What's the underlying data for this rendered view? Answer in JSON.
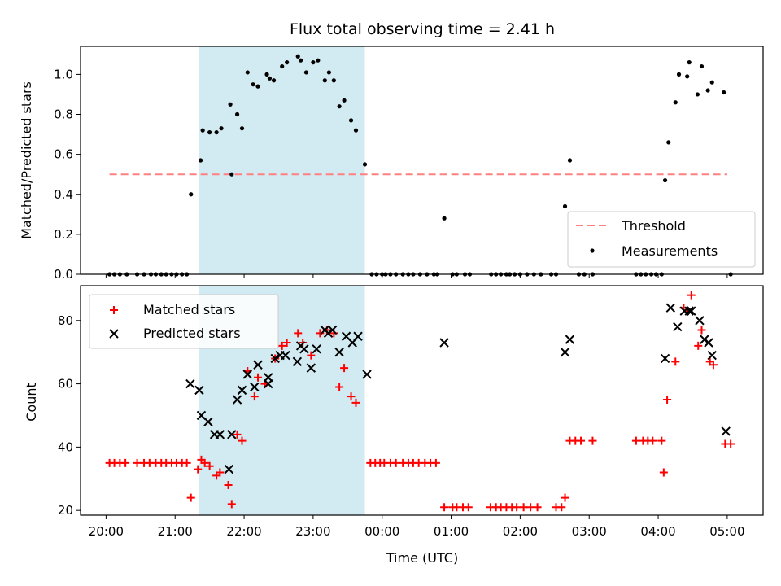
{
  "chart_data": [
    {
      "type": "scatter",
      "title": "Flux total observing time = 2.41 h",
      "ylabel": "Matched/Predicted stars",
      "xlabel": "",
      "x_unit": "hours since 20:00 UTC",
      "xlim": [
        -0.37,
        9.52
      ],
      "ylim": [
        0.0,
        1.14
      ],
      "yticks": [
        0.0,
        0.2,
        0.4,
        0.6,
        0.8,
        1.0
      ],
      "ytick_labels": [
        "0.0",
        "0.2",
        "0.4",
        "0.6",
        "0.8",
        "1.0"
      ],
      "shaded_region": {
        "x0": 1.35,
        "x1": 3.75,
        "color": "#add8e6"
      },
      "threshold": {
        "name": "Threshold",
        "y": 0.5,
        "x0": 0.05,
        "x1": 9.0,
        "color": "#ff8080"
      },
      "legend": {
        "position": "lower right",
        "entries": [
          "Threshold",
          "Measurements"
        ]
      },
      "series": [
        {
          "name": "Measurements",
          "marker": "dot",
          "color": "#000000",
          "points": [
            [
              0.05,
              0
            ],
            [
              0.12,
              0
            ],
            [
              0.2,
              0
            ],
            [
              0.3,
              0
            ],
            [
              0.45,
              0
            ],
            [
              0.55,
              0
            ],
            [
              0.65,
              0
            ],
            [
              0.72,
              0
            ],
            [
              0.8,
              0
            ],
            [
              0.87,
              0
            ],
            [
              0.95,
              0
            ],
            [
              1.02,
              0
            ],
            [
              1.1,
              0
            ],
            [
              1.17,
              0
            ],
            [
              1.23,
              0.4
            ],
            [
              1.37,
              0.57
            ],
            [
              1.4,
              0.72
            ],
            [
              1.5,
              0.71
            ],
            [
              1.6,
              0.71
            ],
            [
              1.67,
              0.73
            ],
            [
              1.8,
              0.85
            ],
            [
              1.82,
              0.5
            ],
            [
              1.9,
              0.8
            ],
            [
              1.97,
              0.73
            ],
            [
              2.05,
              1.01
            ],
            [
              2.13,
              0.95
            ],
            [
              2.2,
              0.94
            ],
            [
              2.33,
              1.0
            ],
            [
              2.37,
              0.98
            ],
            [
              2.43,
              0.97
            ],
            [
              2.55,
              1.04
            ],
            [
              2.62,
              1.06
            ],
            [
              2.78,
              1.09
            ],
            [
              2.82,
              1.07
            ],
            [
              2.9,
              1.01
            ],
            [
              3.0,
              1.06
            ],
            [
              3.07,
              1.07
            ],
            [
              3.17,
              0.97
            ],
            [
              3.23,
              1.01
            ],
            [
              3.3,
              0.97
            ],
            [
              3.38,
              0.84
            ],
            [
              3.45,
              0.87
            ],
            [
              3.55,
              0.77
            ],
            [
              3.62,
              0.72
            ],
            [
              3.75,
              0.55
            ],
            [
              3.85,
              0
            ],
            [
              3.92,
              0
            ],
            [
              4.0,
              0
            ],
            [
              4.05,
              0
            ],
            [
              4.12,
              0
            ],
            [
              4.2,
              0
            ],
            [
              4.3,
              0
            ],
            [
              4.38,
              0
            ],
            [
              4.45,
              0
            ],
            [
              4.55,
              0
            ],
            [
              4.65,
              0
            ],
            [
              4.75,
              0
            ],
            [
              4.8,
              0
            ],
            [
              4.9,
              0.28
            ],
            [
              5.02,
              0
            ],
            [
              5.08,
              0
            ],
            [
              5.2,
              0
            ],
            [
              5.27,
              0
            ],
            [
              5.58,
              0
            ],
            [
              5.65,
              0
            ],
            [
              5.72,
              0
            ],
            [
              5.8,
              0
            ],
            [
              5.85,
              0
            ],
            [
              5.92,
              0
            ],
            [
              6.0,
              0
            ],
            [
              6.1,
              0
            ],
            [
              6.2,
              0
            ],
            [
              6.3,
              0
            ],
            [
              6.45,
              0
            ],
            [
              6.52,
              0
            ],
            [
              6.65,
              0.34
            ],
            [
              6.72,
              0.57
            ],
            [
              6.85,
              0
            ],
            [
              6.93,
              0
            ],
            [
              7.05,
              0
            ],
            [
              7.68,
              0
            ],
            [
              7.75,
              0
            ],
            [
              7.82,
              0
            ],
            [
              7.9,
              0
            ],
            [
              7.97,
              0
            ],
            [
              8.05,
              0
            ],
            [
              8.1,
              0.47
            ],
            [
              8.15,
              0.66
            ],
            [
              8.25,
              0.86
            ],
            [
              8.3,
              1.0
            ],
            [
              8.42,
              0.99
            ],
            [
              8.45,
              1.06
            ],
            [
              8.57,
              0.9
            ],
            [
              8.63,
              1.04
            ],
            [
              8.72,
              0.92
            ],
            [
              8.78,
              0.96
            ],
            [
              8.95,
              0.91
            ],
            [
              9.05,
              0
            ]
          ]
        }
      ]
    },
    {
      "type": "scatter",
      "title": "",
      "ylabel": "Count",
      "xlabel": "Time (UTC)",
      "x_unit": "hours since 20:00 UTC",
      "xlim": [
        -0.37,
        9.52
      ],
      "ylim": [
        18.5,
        91.0
      ],
      "yticks": [
        20,
        40,
        60,
        80
      ],
      "ytick_labels": [
        "20",
        "40",
        "60",
        "80"
      ],
      "xticks": [
        0,
        1,
        2,
        3,
        4,
        5,
        6,
        7,
        8,
        9
      ],
      "xtick_labels": [
        "20:00",
        "21:00",
        "22:00",
        "23:00",
        "00:00",
        "01:00",
        "02:00",
        "03:00",
        "04:00",
        "05:00"
      ],
      "shaded_region": {
        "x0": 1.35,
        "x1": 3.75,
        "color": "#add8e6"
      },
      "legend": {
        "position": "upper left",
        "entries": [
          "Matched stars",
          "Predicted stars"
        ]
      },
      "series": [
        {
          "name": "Matched stars",
          "marker": "plus",
          "color": "#ff0000",
          "points": [
            [
              0.05,
              35
            ],
            [
              0.12,
              35
            ],
            [
              0.2,
              35
            ],
            [
              0.28,
              35
            ],
            [
              0.45,
              35
            ],
            [
              0.55,
              35
            ],
            [
              0.63,
              35
            ],
            [
              0.72,
              35
            ],
            [
              0.8,
              35
            ],
            [
              0.87,
              35
            ],
            [
              0.95,
              35
            ],
            [
              1.02,
              35
            ],
            [
              1.1,
              35
            ],
            [
              1.17,
              35
            ],
            [
              1.23,
              24
            ],
            [
              1.33,
              33
            ],
            [
              1.38,
              36
            ],
            [
              1.43,
              35
            ],
            [
              1.5,
              34
            ],
            [
              1.6,
              31
            ],
            [
              1.65,
              32
            ],
            [
              1.77,
              28
            ],
            [
              1.82,
              22
            ],
            [
              1.9,
              44
            ],
            [
              1.97,
              42
            ],
            [
              2.05,
              64
            ],
            [
              2.15,
              56
            ],
            [
              2.2,
              62
            ],
            [
              2.3,
              60
            ],
            [
              2.45,
              68
            ],
            [
              2.55,
              72
            ],
            [
              2.62,
              73
            ],
            [
              2.78,
              76
            ],
            [
              2.85,
              73
            ],
            [
              2.97,
              69
            ],
            [
              3.1,
              76
            ],
            [
              3.2,
              77
            ],
            [
              3.3,
              76
            ],
            [
              3.38,
              59
            ],
            [
              3.45,
              65
            ],
            [
              3.55,
              56
            ],
            [
              3.62,
              54
            ],
            [
              3.83,
              35
            ],
            [
              3.9,
              35
            ],
            [
              3.97,
              35
            ],
            [
              4.03,
              35
            ],
            [
              4.12,
              35
            ],
            [
              4.2,
              35
            ],
            [
              4.3,
              35
            ],
            [
              4.38,
              35
            ],
            [
              4.45,
              35
            ],
            [
              4.53,
              35
            ],
            [
              4.62,
              35
            ],
            [
              4.7,
              35
            ],
            [
              4.78,
              35
            ],
            [
              4.9,
              21
            ],
            [
              5.02,
              21
            ],
            [
              5.08,
              21
            ],
            [
              5.17,
              21
            ],
            [
              5.25,
              21
            ],
            [
              5.57,
              21
            ],
            [
              5.65,
              21
            ],
            [
              5.72,
              21
            ],
            [
              5.8,
              21
            ],
            [
              5.88,
              21
            ],
            [
              5.95,
              21
            ],
            [
              6.05,
              21
            ],
            [
              6.15,
              21
            ],
            [
              6.25,
              21
            ],
            [
              6.52,
              21
            ],
            [
              6.6,
              21
            ],
            [
              6.65,
              24
            ],
            [
              6.72,
              42
            ],
            [
              6.8,
              42
            ],
            [
              6.88,
              42
            ],
            [
              7.05,
              42
            ],
            [
              7.68,
              42
            ],
            [
              7.78,
              42
            ],
            [
              7.85,
              42
            ],
            [
              7.92,
              42
            ],
            [
              8.05,
              42
            ],
            [
              8.08,
              32
            ],
            [
              8.13,
              55
            ],
            [
              8.25,
              67
            ],
            [
              8.37,
              84
            ],
            [
              8.42,
              83
            ],
            [
              8.48,
              88
            ],
            [
              8.58,
              72
            ],
            [
              8.63,
              77
            ],
            [
              8.75,
              67
            ],
            [
              8.8,
              66
            ],
            [
              8.97,
              41
            ],
            [
              9.05,
              41
            ]
          ]
        },
        {
          "name": "Predicted stars",
          "marker": "x",
          "color": "#000000",
          "points": [
            [
              1.22,
              60
            ],
            [
              1.35,
              58
            ],
            [
              1.38,
              50
            ],
            [
              1.48,
              48
            ],
            [
              1.57,
              44
            ],
            [
              1.65,
              44
            ],
            [
              1.78,
              33
            ],
            [
              1.82,
              44
            ],
            [
              1.9,
              55
            ],
            [
              1.97,
              58
            ],
            [
              2.05,
              63
            ],
            [
              2.15,
              59
            ],
            [
              2.2,
              66
            ],
            [
              2.35,
              62
            ],
            [
              2.35,
              60
            ],
            [
              2.45,
              68
            ],
            [
              2.52,
              69
            ],
            [
              2.6,
              69
            ],
            [
              2.77,
              67
            ],
            [
              2.82,
              72
            ],
            [
              2.87,
              71
            ],
            [
              2.97,
              65
            ],
            [
              3.05,
              71
            ],
            [
              3.17,
              77
            ],
            [
              3.22,
              76
            ],
            [
              3.28,
              77
            ],
            [
              3.38,
              70
            ],
            [
              3.48,
              75
            ],
            [
              3.57,
              73
            ],
            [
              3.65,
              75
            ],
            [
              3.78,
              63
            ],
            [
              4.9,
              73
            ],
            [
              6.65,
              70
            ],
            [
              6.72,
              74
            ],
            [
              8.1,
              68
            ],
            [
              8.18,
              84
            ],
            [
              8.28,
              78
            ],
            [
              8.38,
              83
            ],
            [
              8.45,
              83
            ],
            [
              8.48,
              83
            ],
            [
              8.6,
              80
            ],
            [
              8.67,
              74
            ],
            [
              8.73,
              73
            ],
            [
              8.78,
              69
            ],
            [
              8.98,
              45
            ]
          ]
        }
      ]
    }
  ]
}
